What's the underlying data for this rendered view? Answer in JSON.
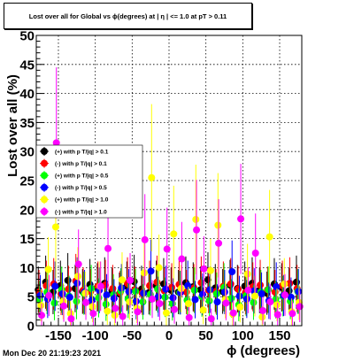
{
  "canvas": {
    "footer": "Mon Dec 20 21:19:23 2021"
  },
  "chart_data": {
    "type": "scatter",
    "title": "Lost over all for Global vs ϕ(degrees) at | η | <= 1.0 at pT > 0.11",
    "xlabel": "ϕ (degrees)",
    "ylabel": "Lost over all (%)",
    "xlim": [
      -180,
      180
    ],
    "ylim": [
      0,
      50
    ],
    "x_ticks": [
      -150,
      -100,
      -50,
      0,
      50,
      100,
      150
    ],
    "y_ticks": [
      0,
      5,
      10,
      15,
      20,
      25,
      30,
      35,
      40,
      45,
      50
    ],
    "grid": true,
    "legend_position": "left-middle",
    "series": [
      {
        "name": "(+) with p T/|q| > 0.1",
        "color": "#000000",
        "values": [
          6.2,
          7.5,
          5.8,
          6.9,
          7.8,
          6.4,
          5.9,
          7.1,
          6.6,
          7.3,
          6.0,
          5.5,
          6.8,
          7.6,
          6.3,
          5.7,
          6.9,
          7.2,
          6.1,
          5.8,
          7.4,
          6.7,
          6.2,
          7.9,
          6.5,
          5.9,
          7.0,
          6.4,
          6.8,
          7.3,
          6.1,
          5.6,
          7.2,
          6.6,
          6.0,
          7.5
        ]
      },
      {
        "name": "(-) with p T/|q| > 0.1",
        "color": "#ff0000",
        "values": [
          5.8,
          6.9,
          7.2,
          5.5,
          6.3,
          7.7,
          6.1,
          5.9,
          6.8,
          7.0,
          6.4,
          5.7,
          7.3,
          6.2,
          5.6,
          6.9,
          7.5,
          6.0,
          6.6,
          7.1,
          5.8,
          6.5,
          7.4,
          6.1,
          5.9,
          6.8,
          7.2,
          6.3,
          5.7,
          6.7,
          7.0,
          6.2,
          5.8,
          6.9,
          7.3,
          6.4
        ]
      },
      {
        "name": "(+) with p T/|q| > 0.5",
        "color": "#00ff00",
        "values": [
          4.5,
          5.8,
          3.9,
          6.2,
          5.1,
          4.2,
          5.6,
          6.4,
          4.8,
          3.7,
          5.3,
          6.0,
          4.6,
          5.9,
          4.1,
          5.4,
          6.3,
          4.9,
          3.8,
          5.7,
          4.4,
          6.1,
          5.0,
          4.3,
          5.5,
          6.6,
          4.7,
          3.6,
          5.2,
          4.0,
          5.8,
          6.2,
          4.5,
          5.1,
          4.2,
          5.9
        ]
      },
      {
        "name": "(-) with p T/|q| > 0.5",
        "color": "#0000ff",
        "values": [
          5.2,
          4.6,
          6.8,
          5.5,
          4.9,
          7.3,
          5.8,
          4.4,
          6.1,
          5.3,
          4.7,
          6.5,
          5.9,
          4.2,
          5.6,
          9.4,
          5.0,
          6.3,
          4.8,
          5.7,
          6.9,
          4.5,
          5.4,
          6.2,
          4.1,
          5.8,
          9.3,
          5.1,
          4.6,
          6.0,
          5.5,
          4.3,
          6.7,
          5.2,
          4.9,
          5.9
        ]
      },
      {
        "name": "(+) with p T/|q| > 1.0",
        "color": "#ffff00",
        "values": [
          3.5,
          9.7,
          17.0,
          4.2,
          2.1,
          8.5,
          5.6,
          3.3,
          6.8,
          2.5,
          1.8,
          7.9,
          4.1,
          3.0,
          9.1,
          25.5,
          10.0,
          2.2,
          15.8,
          6.4,
          3.8,
          18.3,
          2.7,
          9.5,
          17.3,
          4.5,
          2.0,
          3.2,
          8.9,
          5.1,
          1.5,
          15.3,
          3.6,
          7.2,
          2.4,
          4.0
        ]
      },
      {
        "name": "(-) with p T/|q| > 1.0",
        "color": "#ff00ff",
        "values": [
          1.8,
          5.2,
          31.5,
          3.4,
          1.2,
          10.6,
          4.0,
          2.1,
          6.8,
          13.3,
          3.0,
          1.6,
          7.8,
          2.4,
          14.8,
          4.6,
          3.8,
          13.2,
          2.8,
          11.5,
          1.4,
          16.5,
          9.8,
          1.2,
          14.2,
          3.9,
          2.2,
          18.4,
          6.1,
          12.5,
          2.6,
          4.1,
          1.9,
          5.3,
          2.1,
          3.3
        ]
      }
    ],
    "x": [
      -175,
      -165,
      -155,
      -145,
      -135,
      -125,
      -115,
      -105,
      -95,
      -85,
      -75,
      -65,
      -55,
      -45,
      -35,
      -25,
      -15,
      -5,
      5,
      15,
      25,
      35,
      45,
      55,
      65,
      75,
      85,
      95,
      105,
      115,
      125,
      135,
      145,
      155,
      165,
      175
    ]
  }
}
